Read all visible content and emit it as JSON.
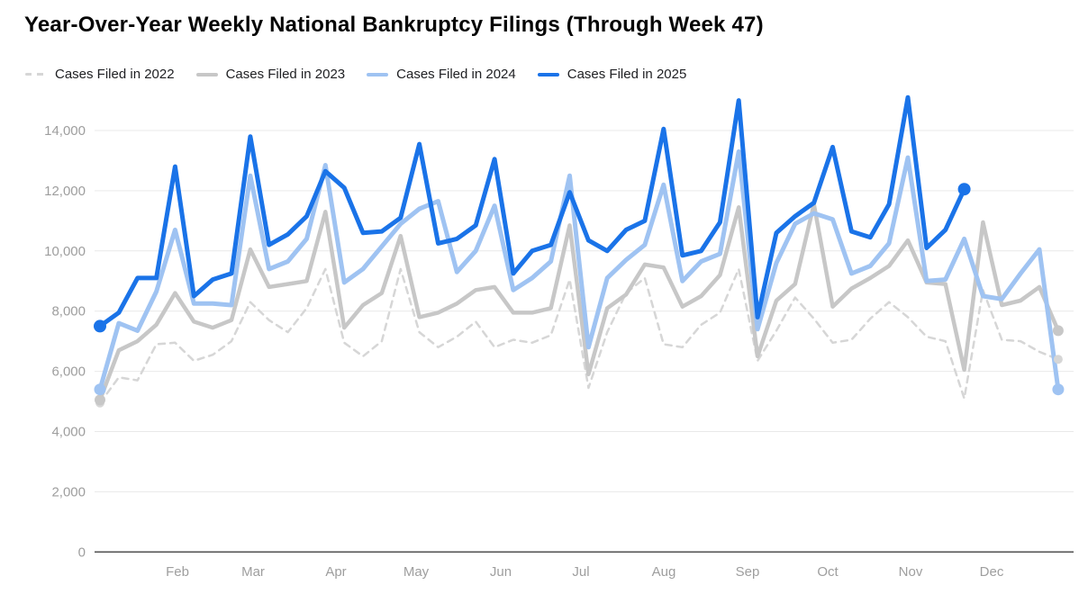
{
  "header": {
    "title": "Year-Over-Year Weekly National Bankruptcy Filings (Through Week 47)"
  },
  "legend": {
    "items": [
      {
        "label": "Cases Filed in 2022",
        "color": "#d6d6d6",
        "dashed": true
      },
      {
        "label": "Cases Filed in 2023",
        "color": "#c7c7c7",
        "dashed": false
      },
      {
        "label": "Cases Filed in 2024",
        "color": "#9fc3f2",
        "dashed": false
      },
      {
        "label": "Cases Filed in 2025",
        "color": "#1a73e8",
        "dashed": false
      }
    ]
  },
  "chart_data": {
    "type": "line",
    "title": "Year-Over-Year Weekly National Bankruptcy Filings (Through Week 47)",
    "xlabel": "",
    "ylabel": "",
    "x_unit": "week of year",
    "ylim": [
      0,
      14000
    ],
    "grid": true,
    "legend_position": "top-left",
    "y_ticks": [
      {
        "value": 0,
        "label": "0"
      },
      {
        "value": 2000,
        "label": "2,000"
      },
      {
        "value": 4000,
        "label": "4,000"
      },
      {
        "value": 6000,
        "label": "6,000"
      },
      {
        "value": 8000,
        "label": "8,000"
      },
      {
        "value": 10000,
        "label": "10,000"
      },
      {
        "value": 12000,
        "label": "12,000"
      },
      {
        "value": 14000,
        "label": "14,000"
      }
    ],
    "x_month_labels": [
      {
        "label": "Feb",
        "px": 197
      },
      {
        "label": "Mar",
        "px": 281
      },
      {
        "label": "Apr",
        "px": 373
      },
      {
        "label": "May",
        "px": 462
      },
      {
        "label": "Jun",
        "px": 556
      },
      {
        "label": "Jul",
        "px": 645
      },
      {
        "label": "Aug",
        "px": 737
      },
      {
        "label": "Sep",
        "px": 830
      },
      {
        "label": "Oct",
        "px": 919
      },
      {
        "label": "Nov",
        "px": 1011
      },
      {
        "label": "Dec",
        "px": 1101
      }
    ],
    "series": [
      {
        "name": "Cases Filed in 2022",
        "color": "#d6d6d6",
        "dashed": true,
        "stroke_width": 2.5,
        "dot_radius": 5,
        "values": [
          4950,
          5800,
          5700,
          6900,
          6950,
          6350,
          6550,
          7000,
          8300,
          7700,
          7300,
          8100,
          9400,
          6950,
          6500,
          7000,
          9400,
          7300,
          6800,
          7150,
          7650,
          6800,
          7050,
          6950,
          7200,
          9050,
          5450,
          7300,
          8600,
          9100,
          6900,
          6800,
          7550,
          7950,
          9400,
          6350,
          7350,
          8450,
          7750,
          6950,
          7050,
          7750,
          8300,
          7800,
          7150,
          7000,
          5100,
          8700,
          7050,
          7000,
          6650,
          6400
        ]
      },
      {
        "name": "Cases Filed in 2023",
        "color": "#c7c7c7",
        "dashed": false,
        "stroke_width": 4.5,
        "dot_radius": 6,
        "values": [
          5050,
          6700,
          7000,
          7550,
          8600,
          7650,
          7450,
          7700,
          10050,
          8800,
          8900,
          9000,
          11300,
          7450,
          8200,
          8600,
          10500,
          7800,
          7950,
          8250,
          8700,
          8800,
          7950,
          7950,
          8100,
          10850,
          5900,
          8100,
          8550,
          9550,
          9450,
          8150,
          8500,
          9200,
          11450,
          6500,
          8350,
          8900,
          11550,
          8150,
          8750,
          9100,
          9500,
          10350,
          8950,
          8900,
          6050,
          10950,
          8200,
          8350,
          8800,
          7350
        ]
      },
      {
        "name": "Cases Filed in 2024",
        "color": "#9fc3f2",
        "dashed": false,
        "stroke_width": 5,
        "dot_radius": 6.5,
        "values": [
          5400,
          7600,
          7350,
          8650,
          10700,
          8250,
          8250,
          8200,
          12500,
          9400,
          9650,
          10400,
          12850,
          8950,
          9400,
          10150,
          10900,
          11400,
          11650,
          9300,
          10000,
          11500,
          8700,
          9100,
          9650,
          12500,
          6800,
          9100,
          9700,
          10200,
          12200,
          9000,
          9650,
          9900,
          13300,
          7400,
          9600,
          10900,
          11250,
          11050,
          9250,
          9500,
          10250,
          13100,
          9000,
          9050,
          10400,
          8500,
          8400,
          9250,
          10050,
          5400
        ]
      },
      {
        "name": "Cases Filed in 2025",
        "color": "#1a73e8",
        "dashed": false,
        "stroke_width": 5,
        "dot_radius": 7,
        "values": [
          7500,
          7950,
          9100,
          9100,
          12800,
          8500,
          9050,
          9250,
          13800,
          10200,
          10550,
          11150,
          12650,
          12100,
          10600,
          10650,
          11100,
          13550,
          10250,
          10400,
          10850,
          13050,
          9250,
          10000,
          10200,
          11950,
          10350,
          10000,
          10700,
          11000,
          14050,
          9850,
          10000,
          10950,
          15000,
          7800,
          10600,
          11150,
          11600,
          13450,
          10650,
          10450,
          11550,
          15100,
          10100,
          10700,
          12050
        ]
      }
    ]
  }
}
